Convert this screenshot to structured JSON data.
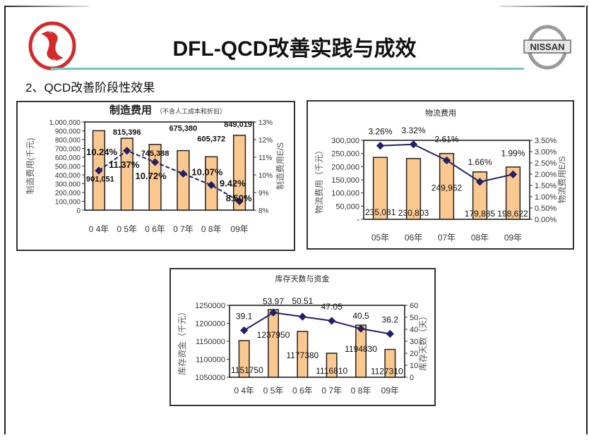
{
  "header": {
    "title": "DFL-QCD改善实践与成效",
    "subtitle": "2、QCD改善阶段性效果",
    "left_logo": "dongfeng-logo",
    "right_logo_text": "NISSAN"
  },
  "colors": {
    "bar": "#fbc88f",
    "bar_stroke": "#222",
    "line": "#22216b",
    "rule": "#6cc8c4",
    "logo_red": "#d42a2a"
  },
  "chart_data": [
    {
      "type": "bar+line",
      "title": "制造费用",
      "title_note": "（不含人工成本和折旧）",
      "categories": [
        "0 4年",
        "0 5年",
        "0 6年",
        "0 7年",
        "0 8年",
        "09年"
      ],
      "bar_series": {
        "name": "制造费用(千元)",
        "values": [
          901051,
          815396,
          745388,
          675380,
          605372,
          849019
        ],
        "labels": [
          "901,051",
          "815,396",
          "745,388",
          "675,380",
          "605,372",
          "849,019"
        ]
      },
      "line_series": {
        "name": "制造费用E/S",
        "values": [
          10.24,
          11.37,
          10.72,
          10.07,
          9.42,
          8.5
        ],
        "labels": [
          "10.24%",
          "11.37%",
          "10.72%",
          "10.07%",
          "9.42%",
          "8.50%"
        ]
      },
      "ylabel": "制造费用(千元)",
      "y2label": "制造费用E/S",
      "ylim": [
        0,
        1000000
      ],
      "y2lim": [
        8,
        13
      ],
      "yticks": [
        "1,000,000",
        "900,000",
        "800,000",
        "700,000",
        "600,000",
        "500,000",
        "400,000",
        "300,000",
        "200,000",
        "100,000",
        "0"
      ],
      "y2ticks": [
        "13%",
        "12%",
        "11%",
        "10%",
        "9%",
        "8%"
      ]
    },
    {
      "type": "bar+line",
      "title": "物流费用",
      "title_note": "",
      "categories": [
        "05年",
        "06年",
        "07年",
        "08年",
        "09年"
      ],
      "bar_series": {
        "name": "物流费用(千元)",
        "values": [
          235081,
          230803,
          249952,
          179885,
          198622
        ],
        "labels": [
          "235,081",
          "230,803",
          "249,952",
          "179,885",
          "198,622"
        ]
      },
      "line_series": {
        "name": "物流费用E/S",
        "values": [
          3.26,
          3.32,
          2.61,
          1.66,
          1.99
        ],
        "labels": [
          "3.26%",
          "3.32%",
          "2.61%",
          "1.66%",
          "1.99%"
        ]
      },
      "ylabel": "物流费用（千元）",
      "y2label": "物流费用E/S",
      "ylim": [
        0,
        300000
      ],
      "y2lim": [
        0,
        3.5
      ],
      "yticks": [
        "300,000",
        "250,000",
        "200,000",
        "150,000",
        "100,000",
        "50,000",
        "-"
      ],
      "y2ticks": [
        "3.50%",
        "3.00%",
        "2.50%",
        "2.00%",
        "1.50%",
        "1.00%",
        "0.50%",
        "0.00%"
      ]
    },
    {
      "type": "bar+line",
      "title": "库存天数与资金",
      "title_note": "",
      "categories": [
        "0 4年",
        "0 5年",
        "0 6年",
        "0 7年",
        "0 8年",
        "09年"
      ],
      "bar_series": {
        "name": "库存资金(千元)",
        "values": [
          1151750,
          1237950,
          1177380,
          1116810,
          1194830,
          1127310
        ],
        "labels": [
          "1151750",
          "1237950",
          "1177380",
          "1116810",
          "1194830",
          "1127310"
        ]
      },
      "line_series": {
        "name": "库存天数(天)",
        "values": [
          39.1,
          53.97,
          50.51,
          47.05,
          40.5,
          36.2
        ],
        "labels": [
          "39.1",
          "53.97",
          "50.51",
          "47.05",
          "40.5",
          "36.2"
        ]
      },
      "ylabel": "库存资金（千元）",
      "y2label": "库存天数（天）",
      "ylim": [
        1050000,
        1250000
      ],
      "y2lim": [
        0,
        60
      ],
      "yticks": [
        "1250000",
        "1200000",
        "1150000",
        "1100000",
        "1050000"
      ],
      "y2ticks": [
        "60",
        "50",
        "40",
        "30",
        "20",
        "10",
        "0"
      ]
    }
  ]
}
